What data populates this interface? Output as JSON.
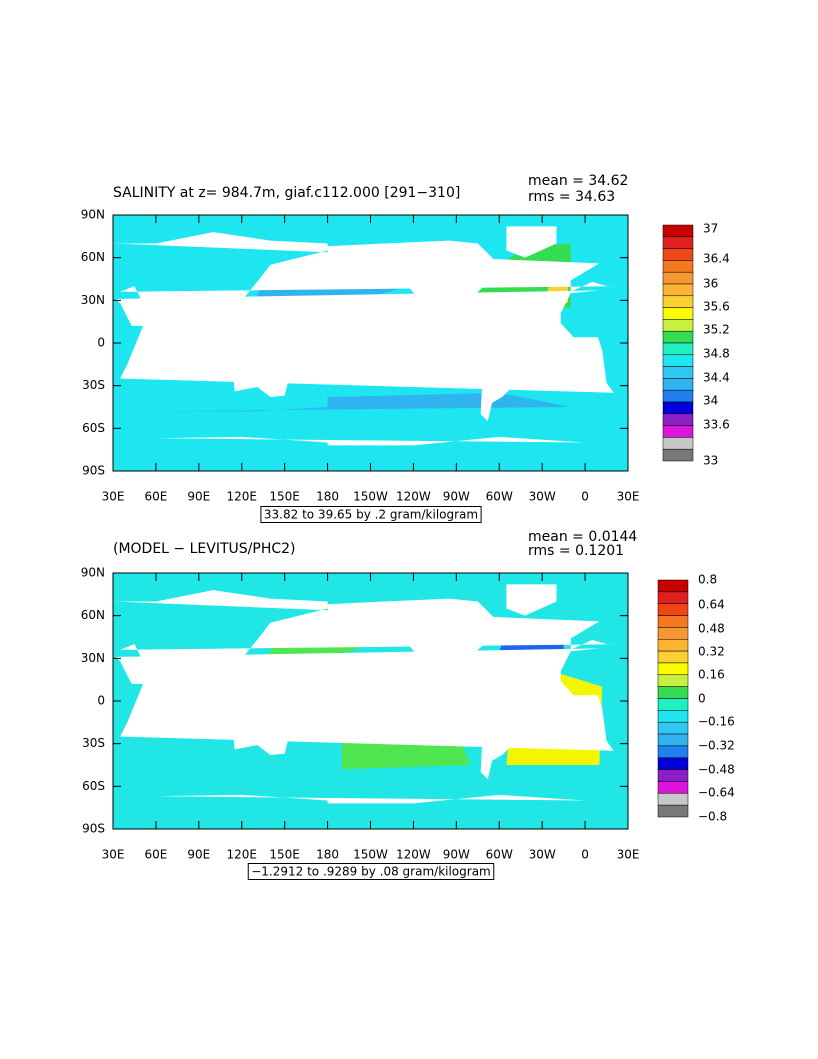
{
  "panels": [
    {
      "title": "SALINITY at z= 984.7m, giaf.c112.000 [291−310]",
      "mean": "mean = 34.62",
      "rms": "rms = 34.63",
      "y_labels": [
        "90N",
        "60N",
        "30N",
        "0",
        "30S",
        "60S",
        "90S"
      ],
      "x_labels": [
        "30E",
        "60E",
        "90E",
        "120E",
        "150E",
        "180",
        "150W",
        "120W",
        "90W",
        "60W",
        "30W",
        "0",
        "30E"
      ],
      "contour_info": "33.82 to 39.65 by .2 gram/kilogram",
      "colorbar_labels": [
        "37",
        "36.4",
        "36",
        "35.6",
        "35.2",
        "34.8",
        "34.4",
        "34",
        "33.6",
        "33"
      ]
    },
    {
      "title": "(MODEL − LEVITUS/PHC2)",
      "mean": "mean = 0.0144",
      "rms": "rms = 0.1201",
      "y_labels": [
        "90N",
        "60N",
        "30N",
        "0",
        "30S",
        "60S",
        "90S"
      ],
      "x_labels": [
        "30E",
        "60E",
        "90E",
        "120E",
        "150E",
        "180",
        "150W",
        "120W",
        "90W",
        "60W",
        "30W",
        "0",
        "30E"
      ],
      "contour_info": "−1.2912 to .9289 by .08 gram/kilogram",
      "colorbar_labels": [
        "0.8",
        "0.64",
        "0.48",
        "0.32",
        "0.16",
        "0",
        "−0.16",
        "−0.32",
        "−0.48",
        "−0.64",
        "−0.8"
      ]
    }
  ]
}
